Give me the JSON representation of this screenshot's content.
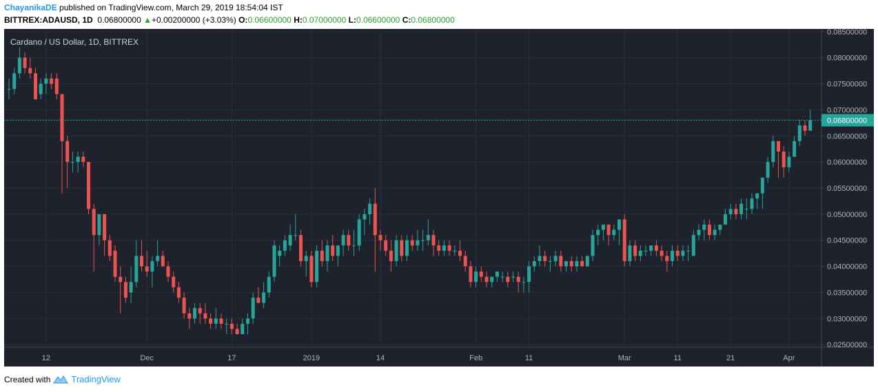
{
  "header": {
    "author": "ChayanikaDE",
    "published": "published on TradingView.com, March 29, 2019 18:54:04 IST",
    "symbol": "BITTREX:ADAUSD, 1D",
    "last": "0.06800000",
    "change": "+0.00200000 (+3.03%)",
    "o_label": "O:",
    "o": "0.06600000",
    "h_label": "H:",
    "h": "0.07000000",
    "l_label": "L:",
    "l": "0.06600000",
    "c_label": "C:",
    "c": "0.06800000"
  },
  "footer": {
    "created": "Created with",
    "brand": "TradingView"
  },
  "colors": {
    "up": "#26a69a",
    "down": "#ef5350",
    "background": "#1e222d",
    "grid": "#2a2e39",
    "text": "#b2b5be",
    "price_tag": "#26a69a"
  },
  "chart_data": {
    "type": "candlestick",
    "title": "Cardano / US Dollar, 1D, BITTREX",
    "ylim": [
      0.0245,
      0.0855
    ],
    "yticks": [
      "0.02500000",
      "0.03000000",
      "0.03500000",
      "0.04000000",
      "0.04500000",
      "0.05000000",
      "0.05500000",
      "0.06000000",
      "0.06500000",
      "0.07000000",
      "0.07500000",
      "0.08000000",
      "0.08500000"
    ],
    "x_start": "2018-11-05",
    "xticks": [
      {
        "label": "12",
        "date": "2018-11-12"
      },
      {
        "label": "Dec",
        "date": "2018-12-01"
      },
      {
        "label": "17",
        "date": "2018-12-17"
      },
      {
        "label": "2019",
        "date": "2019-01-01"
      },
      {
        "label": "14",
        "date": "2019-01-14"
      },
      {
        "label": "Feb",
        "date": "2019-02-01"
      },
      {
        "label": "11",
        "date": "2019-02-11"
      },
      {
        "label": "Mar",
        "date": "2019-03-01"
      },
      {
        "label": "11",
        "date": "2019-03-11"
      },
      {
        "label": "21",
        "date": "2019-03-21"
      },
      {
        "label": "Apr",
        "date": "2019-04-01"
      }
    ],
    "last_price": 0.068,
    "last_price_label": "0.06800000",
    "grid": true,
    "candles": [
      [
        0.074,
        0.076,
        0.072,
        0.074
      ],
      [
        0.074,
        0.078,
        0.073,
        0.077
      ],
      [
        0.077,
        0.082,
        0.076,
        0.08
      ],
      [
        0.08,
        0.081,
        0.077,
        0.078
      ],
      [
        0.078,
        0.08,
        0.076,
        0.077
      ],
      [
        0.077,
        0.078,
        0.072,
        0.072
      ],
      [
        0.073,
        0.076,
        0.072,
        0.075
      ],
      [
        0.075,
        0.077,
        0.073,
        0.076
      ],
      [
        0.076,
        0.077,
        0.074,
        0.075
      ],
      [
        0.076,
        0.077,
        0.072,
        0.073
      ],
      [
        0.073,
        0.073,
        0.054,
        0.064
      ],
      [
        0.064,
        0.065,
        0.055,
        0.06
      ],
      [
        0.06,
        0.062,
        0.058,
        0.06
      ],
      [
        0.06,
        0.062,
        0.058,
        0.061
      ],
      [
        0.061,
        0.062,
        0.059,
        0.06
      ],
      [
        0.06,
        0.06,
        0.05,
        0.051
      ],
      [
        0.051,
        0.052,
        0.039,
        0.046
      ],
      [
        0.046,
        0.05,
        0.044,
        0.05
      ],
      [
        0.05,
        0.05,
        0.042,
        0.045
      ],
      [
        0.045,
        0.046,
        0.041,
        0.042
      ],
      [
        0.043,
        0.044,
        0.037,
        0.038
      ],
      [
        0.038,
        0.04,
        0.031,
        0.037
      ],
      [
        0.037,
        0.038,
        0.033,
        0.034
      ],
      [
        0.035,
        0.04,
        0.033,
        0.037
      ],
      [
        0.037,
        0.045,
        0.036,
        0.042
      ],
      [
        0.042,
        0.045,
        0.039,
        0.04
      ],
      [
        0.04,
        0.043,
        0.038,
        0.039
      ],
      [
        0.039,
        0.042,
        0.036,
        0.041
      ],
      [
        0.041,
        0.045,
        0.04,
        0.042
      ],
      [
        0.042,
        0.043,
        0.04,
        0.04
      ],
      [
        0.04,
        0.041,
        0.037,
        0.038
      ],
      [
        0.038,
        0.039,
        0.035,
        0.036
      ],
      [
        0.036,
        0.037,
        0.033,
        0.034
      ],
      [
        0.034,
        0.035,
        0.03,
        0.031
      ],
      [
        0.031,
        0.032,
        0.028,
        0.03
      ],
      [
        0.03,
        0.033,
        0.029,
        0.032
      ],
      [
        0.032,
        0.033,
        0.029,
        0.031
      ],
      [
        0.031,
        0.033,
        0.029,
        0.03
      ],
      [
        0.03,
        0.031,
        0.028,
        0.029
      ],
      [
        0.029,
        0.032,
        0.028,
        0.03
      ],
      [
        0.03,
        0.031,
        0.028,
        0.029
      ],
      [
        0.029,
        0.03,
        0.027,
        0.029
      ],
      [
        0.029,
        0.03,
        0.027,
        0.028
      ],
      [
        0.028,
        0.029,
        0.027,
        0.027
      ],
      [
        0.027,
        0.03,
        0.027,
        0.029
      ],
      [
        0.029,
        0.031,
        0.027,
        0.03
      ],
      [
        0.03,
        0.035,
        0.029,
        0.034
      ],
      [
        0.034,
        0.036,
        0.033,
        0.033
      ],
      [
        0.033,
        0.037,
        0.032,
        0.035
      ],
      [
        0.035,
        0.039,
        0.034,
        0.038
      ],
      [
        0.038,
        0.045,
        0.037,
        0.044
      ],
      [
        0.042,
        0.044,
        0.04,
        0.043
      ],
      [
        0.043,
        0.046,
        0.042,
        0.045
      ],
      [
        0.044,
        0.048,
        0.043,
        0.046
      ],
      [
        0.046,
        0.05,
        0.045,
        0.046
      ],
      [
        0.046,
        0.047,
        0.04,
        0.041
      ],
      [
        0.041,
        0.043,
        0.038,
        0.042
      ],
      [
        0.042,
        0.043,
        0.036,
        0.037
      ],
      [
        0.037,
        0.044,
        0.036,
        0.043
      ],
      [
        0.043,
        0.045,
        0.04,
        0.041
      ],
      [
        0.041,
        0.045,
        0.039,
        0.044
      ],
      [
        0.044,
        0.046,
        0.041,
        0.042
      ],
      [
        0.042,
        0.044,
        0.04,
        0.044
      ],
      [
        0.044,
        0.047,
        0.042,
        0.046
      ],
      [
        0.046,
        0.047,
        0.043,
        0.044
      ],
      [
        0.044,
        0.047,
        0.042,
        0.044
      ],
      [
        0.044,
        0.05,
        0.043,
        0.049
      ],
      [
        0.049,
        0.051,
        0.046,
        0.05
      ],
      [
        0.05,
        0.053,
        0.048,
        0.052
      ],
      [
        0.052,
        0.055,
        0.039,
        0.046
      ],
      [
        0.046,
        0.047,
        0.043,
        0.045
      ],
      [
        0.045,
        0.046,
        0.042,
        0.043
      ],
      [
        0.043,
        0.045,
        0.039,
        0.041
      ],
      [
        0.041,
        0.046,
        0.04,
        0.045
      ],
      [
        0.045,
        0.046,
        0.041,
        0.042
      ],
      [
        0.042,
        0.046,
        0.041,
        0.045
      ],
      [
        0.045,
        0.046,
        0.043,
        0.044
      ],
      [
        0.044,
        0.047,
        0.043,
        0.045
      ],
      [
        0.045,
        0.047,
        0.043,
        0.045
      ],
      [
        0.045,
        0.049,
        0.044,
        0.046
      ],
      [
        0.046,
        0.047,
        0.042,
        0.044
      ],
      [
        0.044,
        0.045,
        0.042,
        0.043
      ],
      [
        0.043,
        0.045,
        0.042,
        0.044
      ],
      [
        0.044,
        0.045,
        0.042,
        0.043
      ],
      [
        0.043,
        0.044,
        0.042,
        0.043
      ],
      [
        0.043,
        0.045,
        0.041,
        0.042
      ],
      [
        0.042,
        0.043,
        0.039,
        0.04
      ],
      [
        0.04,
        0.041,
        0.036,
        0.037
      ],
      [
        0.037,
        0.04,
        0.036,
        0.039
      ],
      [
        0.039,
        0.04,
        0.037,
        0.038
      ],
      [
        0.038,
        0.039,
        0.036,
        0.037
      ],
      [
        0.037,
        0.038,
        0.036,
        0.038
      ],
      [
        0.038,
        0.039,
        0.037,
        0.039
      ],
      [
        0.038,
        0.039,
        0.037,
        0.038
      ],
      [
        0.038,
        0.039,
        0.036,
        0.037
      ],
      [
        0.038,
        0.039,
        0.037,
        0.038
      ],
      [
        0.038,
        0.039,
        0.035,
        0.037
      ],
      [
        0.037,
        0.038,
        0.035,
        0.037
      ],
      [
        0.037,
        0.041,
        0.035,
        0.04
      ],
      [
        0.04,
        0.042,
        0.039,
        0.041
      ],
      [
        0.041,
        0.044,
        0.04,
        0.042
      ],
      [
        0.042,
        0.043,
        0.04,
        0.041
      ],
      [
        0.041,
        0.042,
        0.039,
        0.041
      ],
      [
        0.041,
        0.043,
        0.04,
        0.042
      ],
      [
        0.042,
        0.043,
        0.039,
        0.04
      ],
      [
        0.04,
        0.041,
        0.039,
        0.041
      ],
      [
        0.041,
        0.042,
        0.039,
        0.04
      ],
      [
        0.04,
        0.042,
        0.039,
        0.041
      ],
      [
        0.041,
        0.042,
        0.04,
        0.04
      ],
      [
        0.04,
        0.042,
        0.04,
        0.042
      ],
      [
        0.042,
        0.047,
        0.041,
        0.046
      ],
      [
        0.046,
        0.048,
        0.044,
        0.047
      ],
      [
        0.047,
        0.048,
        0.045,
        0.048
      ],
      [
        0.048,
        0.048,
        0.044,
        0.046
      ],
      [
        0.046,
        0.048,
        0.045,
        0.047
      ],
      [
        0.047,
        0.049,
        0.044,
        0.049
      ],
      [
        0.049,
        0.05,
        0.04,
        0.041
      ],
      [
        0.041,
        0.045,
        0.04,
        0.044
      ],
      [
        0.044,
        0.045,
        0.041,
        0.042
      ],
      [
        0.042,
        0.044,
        0.041,
        0.043
      ],
      [
        0.043,
        0.044,
        0.042,
        0.043
      ],
      [
        0.043,
        0.044,
        0.042,
        0.044
      ],
      [
        0.044,
        0.045,
        0.042,
        0.043
      ],
      [
        0.043,
        0.044,
        0.041,
        0.042
      ],
      [
        0.042,
        0.043,
        0.039,
        0.041
      ],
      [
        0.041,
        0.044,
        0.04,
        0.043
      ],
      [
        0.043,
        0.044,
        0.041,
        0.042
      ],
      [
        0.042,
        0.044,
        0.041,
        0.043
      ],
      [
        0.043,
        0.044,
        0.041,
        0.043
      ],
      [
        0.042,
        0.047,
        0.042,
        0.046
      ],
      [
        0.046,
        0.048,
        0.045,
        0.047
      ],
      [
        0.047,
        0.049,
        0.045,
        0.048
      ],
      [
        0.048,
        0.049,
        0.045,
        0.046
      ],
      [
        0.046,
        0.048,
        0.045,
        0.047
      ],
      [
        0.047,
        0.048,
        0.046,
        0.048
      ],
      [
        0.048,
        0.051,
        0.048,
        0.05
      ],
      [
        0.05,
        0.052,
        0.049,
        0.051
      ],
      [
        0.051,
        0.052,
        0.049,
        0.05
      ],
      [
        0.05,
        0.053,
        0.049,
        0.052
      ],
      [
        0.051,
        0.053,
        0.049,
        0.051
      ],
      [
        0.051,
        0.054,
        0.05,
        0.053
      ],
      [
        0.053,
        0.054,
        0.051,
        0.054
      ],
      [
        0.054,
        0.057,
        0.051,
        0.057
      ],
      [
        0.057,
        0.061,
        0.056,
        0.06
      ],
      [
        0.06,
        0.065,
        0.059,
        0.064
      ],
      [
        0.064,
        0.064,
        0.057,
        0.062
      ],
      [
        0.062,
        0.063,
        0.057,
        0.059
      ],
      [
        0.059,
        0.062,
        0.058,
        0.061
      ],
      [
        0.061,
        0.065,
        0.061,
        0.064
      ],
      [
        0.064,
        0.068,
        0.063,
        0.067
      ],
      [
        0.067,
        0.068,
        0.065,
        0.066
      ],
      [
        0.066,
        0.07,
        0.066,
        0.068
      ]
    ]
  }
}
